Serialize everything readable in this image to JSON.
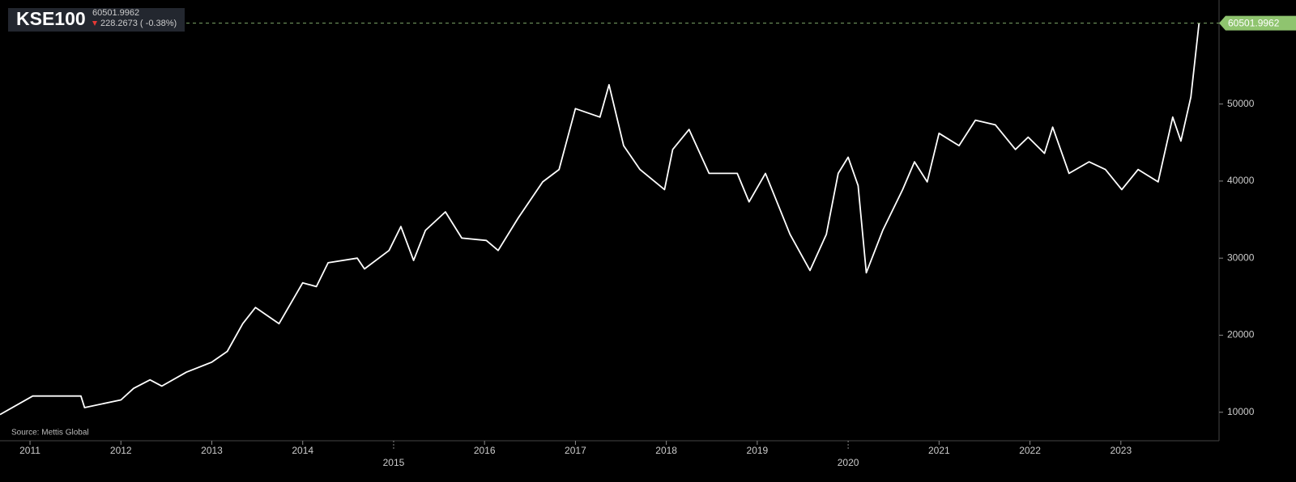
{
  "chart_data": {
    "type": "line",
    "title": "KSE100",
    "last_value": 60501.9962,
    "change_label": "228.2673 ( -0.38%)",
    "source": "Source: Mettis Global",
    "color": "#ffffff",
    "x": [
      2010.67,
      2011.03,
      2011.56,
      2011.6,
      2012.0,
      2012.14,
      2012.32,
      2012.45,
      2012.72,
      2013.0,
      2013.17,
      2013.34,
      2013.48,
      2013.74,
      2014.0,
      2014.15,
      2014.28,
      2014.6,
      2014.68,
      2014.95,
      2015.08,
      2015.22,
      2015.35,
      2015.57,
      2015.75,
      2016.02,
      2016.15,
      2016.37,
      2016.64,
      2016.82,
      2017.0,
      2017.27,
      2017.37,
      2017.53,
      2017.71,
      2017.98,
      2018.07,
      2018.25,
      2018.47,
      2018.78,
      2018.91,
      2019.09,
      2019.36,
      2019.58,
      2019.76,
      2019.89,
      2020.0,
      2020.11,
      2020.2,
      2020.38,
      2020.6,
      2020.73,
      2020.87,
      2021.0,
      2021.22,
      2021.4,
      2021.62,
      2021.84,
      2021.98,
      2022.16,
      2022.25,
      2022.43,
      2022.65,
      2022.83,
      2023.01,
      2023.19,
      2023.41,
      2023.57,
      2023.66,
      2023.77,
      2023.86
    ],
    "values": [
      9700,
      12100,
      12100,
      10600,
      11600,
      13100,
      14200,
      13400,
      15200,
      16500,
      17900,
      21500,
      23600,
      21500,
      26800,
      26300,
      29400,
      30000,
      28600,
      31000,
      34100,
      29700,
      33600,
      36000,
      32600,
      32300,
      31000,
      35200,
      39900,
      41500,
      49400,
      48300,
      52500,
      44600,
      41500,
      38900,
      44100,
      46700,
      41000,
      41000,
      37300,
      41000,
      33100,
      28400,
      33100,
      41000,
      43100,
      39400,
      28100,
      33600,
      38900,
      42500,
      39900,
      46200,
      44600,
      47900,
      47300,
      44100,
      45700,
      43600,
      47000,
      41000,
      42500,
      41500,
      38900,
      41500,
      39900,
      48300,
      45200,
      50900,
      60502
    ],
    "xlim": [
      2010.67,
      2024.08
    ],
    "xticks": [
      2011,
      2012,
      2013,
      2014,
      2015,
      2016,
      2017,
      2018,
      2019,
      2020,
      2021,
      2022,
      2023
    ],
    "ylim": [
      6300,
      63500
    ],
    "yticks": [
      10000,
      20000,
      30000,
      40000,
      50000
    ],
    "grid": false
  }
}
